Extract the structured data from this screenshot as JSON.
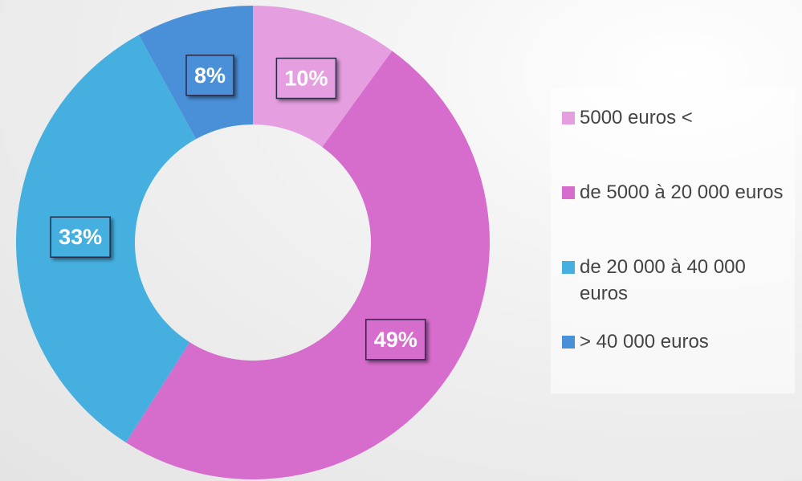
{
  "chart_data": {
    "type": "donut",
    "categories": [
      "5000 euros <",
      "de 5000 à 20 000 euros",
      "de 20 000 à 40 000 euros",
      "> 40 000 euros"
    ],
    "values": [
      10,
      49,
      33,
      8
    ],
    "value_labels": [
      "10%",
      "49%",
      "33%",
      "8%"
    ],
    "colors": [
      "#e59ee0",
      "#d66ccc",
      "#45b0e0",
      "#4a90d9"
    ],
    "legend": "right"
  }
}
